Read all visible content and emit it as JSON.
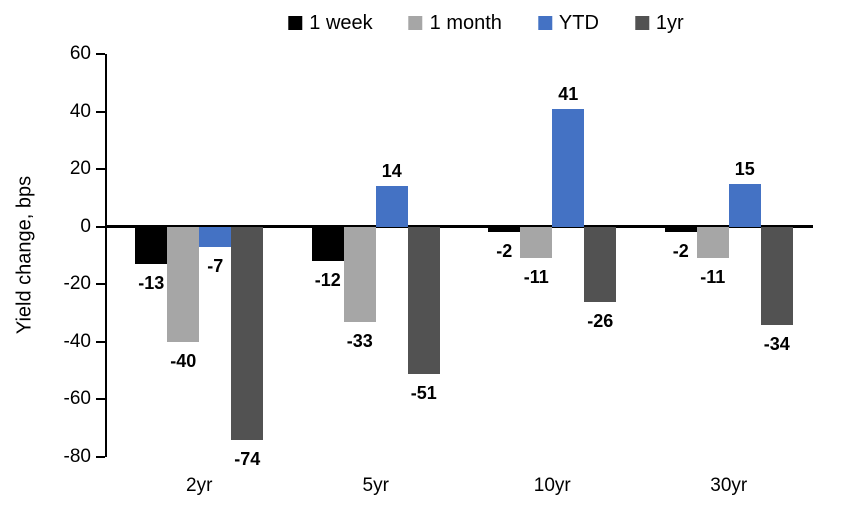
{
  "chart_data": {
    "type": "bar",
    "title": "",
    "xlabel": "",
    "ylabel": "Yield change, bps",
    "categories": [
      "2yr",
      "5yr",
      "10yr",
      "30yr"
    ],
    "series": [
      {
        "name": "1 week",
        "color": "#000000",
        "values": [
          -13,
          -12,
          -2,
          -2
        ]
      },
      {
        "name": "1 month",
        "color": "#A6A6A6",
        "values": [
          -40,
          -33,
          -11,
          -11
        ]
      },
      {
        "name": "YTD",
        "color": "#4472C4",
        "values": [
          -7,
          14,
          41,
          15
        ]
      },
      {
        "name": "1yr",
        "color": "#525252",
        "values": [
          -74,
          -51,
          -26,
          -34
        ]
      }
    ],
    "ylim": [
      -80,
      60
    ],
    "yticks": [
      60,
      40,
      20,
      0,
      -20,
      -40,
      -60,
      -80
    ],
    "grid": false,
    "legend_position": "top",
    "data_labels": "outside-end",
    "axis_color": "#000000",
    "background_color": "#FFFFFF"
  }
}
